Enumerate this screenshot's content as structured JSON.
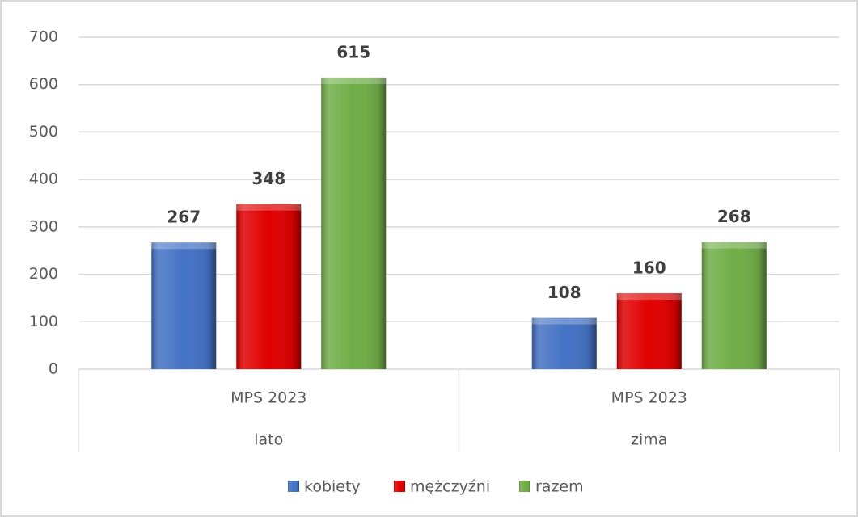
{
  "chart_data": {
    "type": "bar",
    "categories": [
      "lato",
      "zima"
    ],
    "category_groups": [
      "MPS 2023",
      "MPS 2023"
    ],
    "series": [
      {
        "name": "kobiety",
        "color": "#4472c4",
        "values": [
          267,
          108
        ]
      },
      {
        "name": "mężczyźni",
        "color": "#e00000",
        "values": [
          348,
          160
        ]
      },
      {
        "name": "razem",
        "color": "#70ad47",
        "values": [
          615,
          268
        ]
      }
    ],
    "ylim": [
      0,
      700
    ],
    "yticks": [
      0,
      100,
      200,
      300,
      400,
      500,
      600,
      700
    ],
    "grid": true,
    "legend": "bottom"
  }
}
